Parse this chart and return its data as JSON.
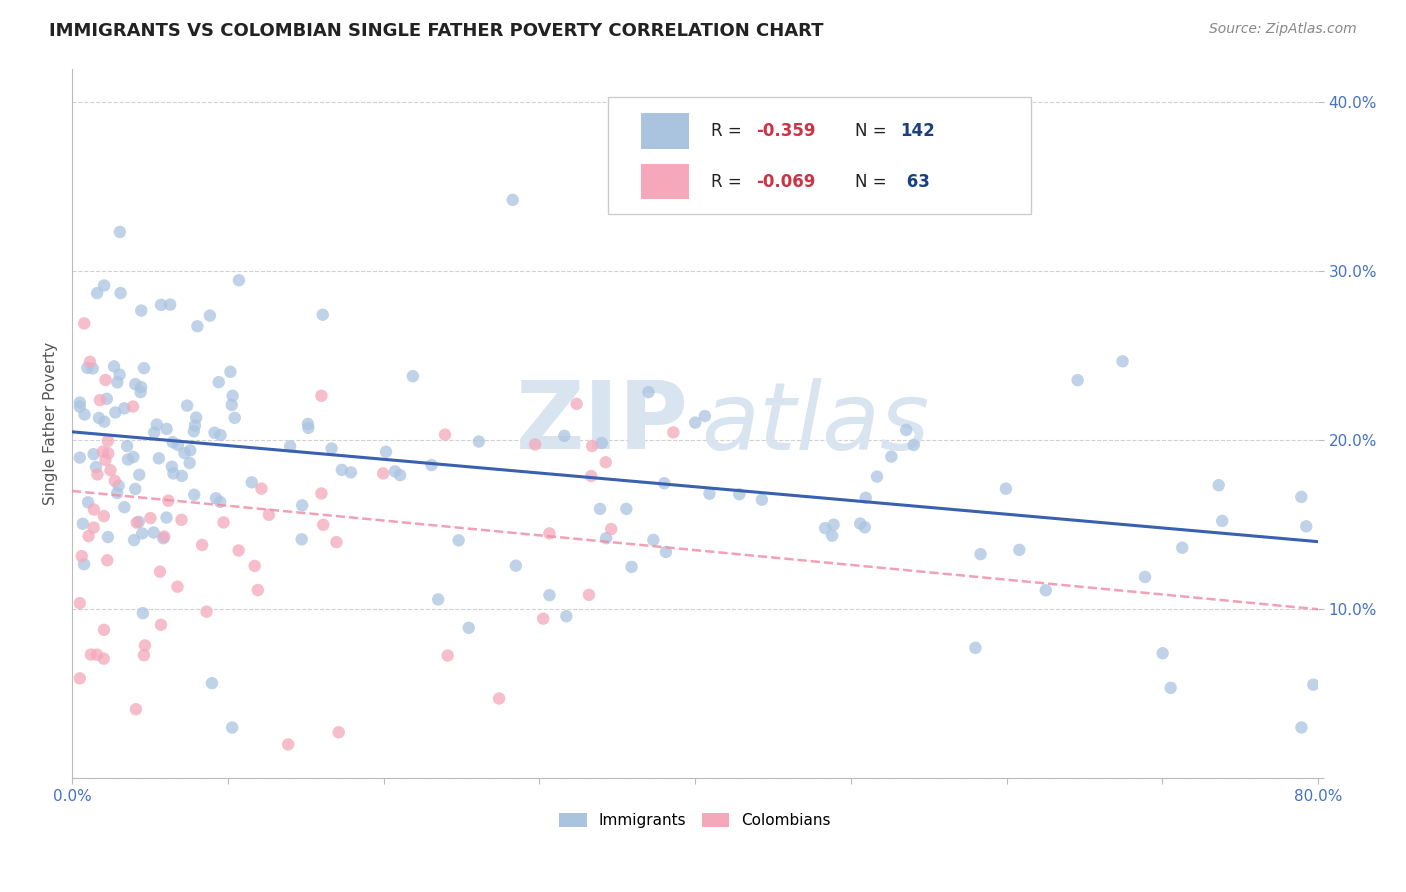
{
  "title": "IMMIGRANTS VS COLOMBIAN SINGLE FATHER POVERTY CORRELATION CHART",
  "source": "Source: ZipAtlas.com",
  "ylabel": "Single Father Poverty",
  "xlim": [
    0.0,
    0.8
  ],
  "ylim": [
    0.0,
    0.42
  ],
  "immigrant_color": "#aac4e0",
  "colombian_color": "#f4a8ba",
  "immigrant_line_color": "#3a60b0",
  "colombian_line_color": "#f090a8",
  "grid_color": "#cccccc",
  "title_color": "#222222",
  "source_color": "#888888",
  "tick_color": "#4472c4",
  "ylabel_color": "#555555",
  "legend_r_color": "#cc3344",
  "legend_n_color": "#1a3a7a",
  "watermark_color": "#d8e4f0"
}
